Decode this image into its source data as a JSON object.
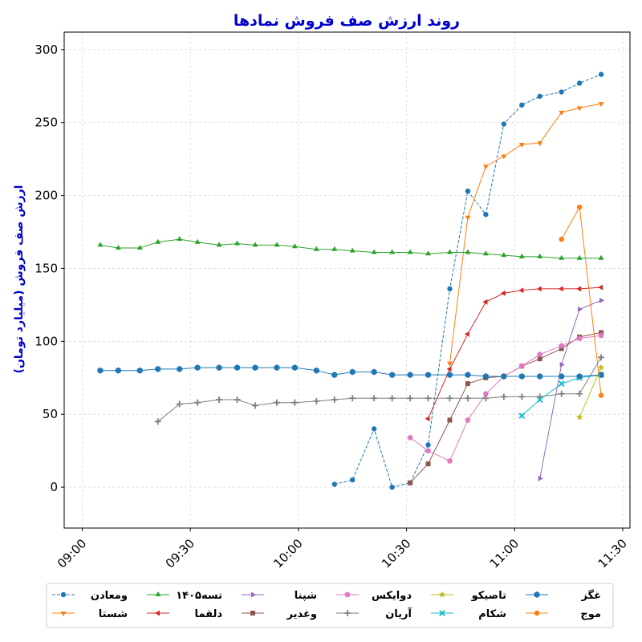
{
  "chart_data": {
    "type": "line",
    "title": "روند ارزش صف فروش نمادها",
    "ylabel": "ارزش صف فروش (میلیارد تومان)",
    "xlabel": "",
    "xlim": [
      "08:55",
      "11:32"
    ],
    "ylim": [
      -28,
      312
    ],
    "x_ticks": [
      "09:00",
      "09:30",
      "10:00",
      "10:30",
      "11:00",
      "11:30"
    ],
    "y_ticks": [
      0,
      50,
      100,
      150,
      200,
      250,
      300
    ],
    "grid": true,
    "legend_placement": "bottom",
    "series": [
      {
        "name": "ومعادن",
        "color": "#1f77b4",
        "marker": "circle",
        "dashed": true,
        "points": [
          [
            "10:10",
            2
          ],
          [
            "10:15",
            5
          ],
          [
            "10:21",
            40
          ],
          [
            "10:26",
            0
          ],
          [
            "10:31",
            3
          ],
          [
            "10:36",
            29
          ],
          [
            "10:42",
            136
          ],
          [
            "10:47",
            203
          ],
          [
            "10:52",
            187
          ],
          [
            "10:57",
            249
          ],
          [
            "11:02",
            262
          ],
          [
            "11:07",
            268
          ],
          [
            "11:13",
            271
          ],
          [
            "11:18",
            277
          ],
          [
            "11:24",
            283
          ]
        ]
      },
      {
        "name": "شستا",
        "color": "#ff7f0e",
        "marker": "triangle-down",
        "dashed": false,
        "points": [
          [
            "10:42",
            85
          ],
          [
            "10:47",
            185
          ],
          [
            "10:52",
            220
          ],
          [
            "10:57",
            227
          ],
          [
            "11:02",
            235
          ],
          [
            "11:07",
            236
          ],
          [
            "11:13",
            257
          ],
          [
            "11:18",
            260
          ],
          [
            "11:24",
            263
          ]
        ]
      },
      {
        "name": "تسه۱۴۰۵",
        "color": "#2ca02c",
        "marker": "triangle-up",
        "dashed": false,
        "points": [
          [
            "09:05",
            166
          ],
          [
            "09:10",
            164
          ],
          [
            "09:16",
            164
          ],
          [
            "09:21",
            168
          ],
          [
            "09:27",
            170
          ],
          [
            "09:32",
            168
          ],
          [
            "09:38",
            166
          ],
          [
            "09:43",
            167
          ],
          [
            "09:48",
            166
          ],
          [
            "09:54",
            166
          ],
          [
            "09:59",
            165
          ],
          [
            "10:05",
            163
          ],
          [
            "10:10",
            163
          ],
          [
            "10:15",
            162
          ],
          [
            "10:21",
            161
          ],
          [
            "10:26",
            161
          ],
          [
            "10:31",
            161
          ],
          [
            "10:36",
            160
          ],
          [
            "10:42",
            161
          ],
          [
            "10:47",
            161
          ],
          [
            "10:52",
            160
          ],
          [
            "10:57",
            159
          ],
          [
            "11:02",
            158
          ],
          [
            "11:07",
            158
          ],
          [
            "11:13",
            157
          ],
          [
            "11:18",
            157
          ],
          [
            "11:24",
            157
          ]
        ]
      },
      {
        "name": "دلقما",
        "color": "#d62728",
        "marker": "triangle-left",
        "dashed": false,
        "points": [
          [
            "10:36",
            47
          ],
          [
            "10:42",
            81
          ],
          [
            "10:47",
            105
          ],
          [
            "10:52",
            127
          ],
          [
            "10:57",
            133
          ],
          [
            "11:02",
            135
          ],
          [
            "11:07",
            136
          ],
          [
            "11:13",
            136
          ],
          [
            "11:18",
            136
          ],
          [
            "11:24",
            137
          ]
        ]
      },
      {
        "name": "شپنا",
        "color": "#9467bd",
        "marker": "triangle-right",
        "dashed": false,
        "points": [
          [
            "11:07",
            6
          ],
          [
            "11:13",
            84
          ],
          [
            "11:18",
            122
          ],
          [
            "11:24",
            128
          ]
        ]
      },
      {
        "name": "وغدیر",
        "color": "#8c564b",
        "marker": "square",
        "dashed": false,
        "points": [
          [
            "10:31",
            3
          ],
          [
            "10:36",
            16
          ],
          [
            "10:42",
            46
          ],
          [
            "10:47",
            71
          ],
          [
            "10:52",
            75
          ],
          [
            "10:57",
            76
          ],
          [
            "11:02",
            83
          ],
          [
            "11:07",
            88
          ],
          [
            "11:13",
            95
          ],
          [
            "11:18",
            103
          ],
          [
            "11:24",
            106
          ]
        ]
      },
      {
        "name": "دوایکس",
        "color": "#e377c2",
        "marker": "pentagon",
        "dashed": false,
        "points": [
          [
            "10:31",
            34
          ],
          [
            "10:36",
            25
          ],
          [
            "10:42",
            18
          ],
          [
            "10:47",
            46
          ],
          [
            "10:52",
            64
          ],
          [
            "10:57",
            76
          ],
          [
            "11:02",
            83
          ],
          [
            "11:07",
            91
          ],
          [
            "11:13",
            97
          ],
          [
            "11:18",
            102
          ],
          [
            "11:24",
            104
          ]
        ]
      },
      {
        "name": "آریان",
        "color": "#7f7f7f",
        "marker": "plus",
        "dashed": false,
        "points": [
          [
            "09:21",
            45
          ],
          [
            "09:27",
            57
          ],
          [
            "09:32",
            58
          ],
          [
            "09:38",
            60
          ],
          [
            "09:43",
            60
          ],
          [
            "09:48",
            56
          ],
          [
            "09:54",
            58
          ],
          [
            "09:59",
            58
          ],
          [
            "10:05",
            59
          ],
          [
            "10:10",
            60
          ],
          [
            "10:15",
            61
          ],
          [
            "10:21",
            61
          ],
          [
            "10:26",
            61
          ],
          [
            "10:31",
            61
          ],
          [
            "10:36",
            61
          ],
          [
            "10:42",
            61
          ],
          [
            "10:47",
            61
          ],
          [
            "10:52",
            61
          ],
          [
            "10:57",
            62
          ],
          [
            "11:02",
            62
          ],
          [
            "11:07",
            62
          ],
          [
            "11:13",
            64
          ],
          [
            "11:18",
            64
          ],
          [
            "11:24",
            89
          ]
        ]
      },
      {
        "name": "تاصیکو",
        "color": "#bcbd22",
        "marker": "star",
        "dashed": false,
        "points": [
          [
            "11:18",
            48
          ],
          [
            "11:24",
            82
          ]
        ]
      },
      {
        "name": "شکام",
        "color": "#17becf",
        "marker": "x",
        "dashed": false,
        "points": [
          [
            "11:02",
            49
          ],
          [
            "11:07",
            60
          ],
          [
            "11:13",
            71
          ],
          [
            "11:18",
            75
          ],
          [
            "11:24",
            77
          ]
        ]
      },
      {
        "name": "غگز",
        "color": "#1f77b4",
        "marker": "hexagon",
        "dashed": false,
        "points": [
          [
            "09:05",
            80
          ],
          [
            "09:10",
            80
          ],
          [
            "09:16",
            80
          ],
          [
            "09:21",
            81
          ],
          [
            "09:27",
            81
          ],
          [
            "09:32",
            82
          ],
          [
            "09:38",
            82
          ],
          [
            "09:43",
            82
          ],
          [
            "09:48",
            82
          ],
          [
            "09:54",
            82
          ],
          [
            "09:59",
            82
          ],
          [
            "10:05",
            80
          ],
          [
            "10:10",
            77
          ],
          [
            "10:15",
            79
          ],
          [
            "10:21",
            79
          ],
          [
            "10:26",
            77
          ],
          [
            "10:31",
            77
          ],
          [
            "10:36",
            77
          ],
          [
            "10:42",
            77
          ],
          [
            "10:47",
            77
          ],
          [
            "10:52",
            76
          ],
          [
            "10:57",
            76
          ],
          [
            "11:02",
            76
          ],
          [
            "11:07",
            76
          ],
          [
            "11:13",
            76
          ],
          [
            "11:18",
            76
          ],
          [
            "11:24",
            77
          ]
        ]
      },
      {
        "name": "موج",
        "color": "#ff7f0e",
        "marker": "circle",
        "dashed": false,
        "points": [
          [
            "11:13",
            170
          ],
          [
            "11:18",
            192
          ],
          [
            "11:24",
            63
          ]
        ]
      }
    ]
  }
}
